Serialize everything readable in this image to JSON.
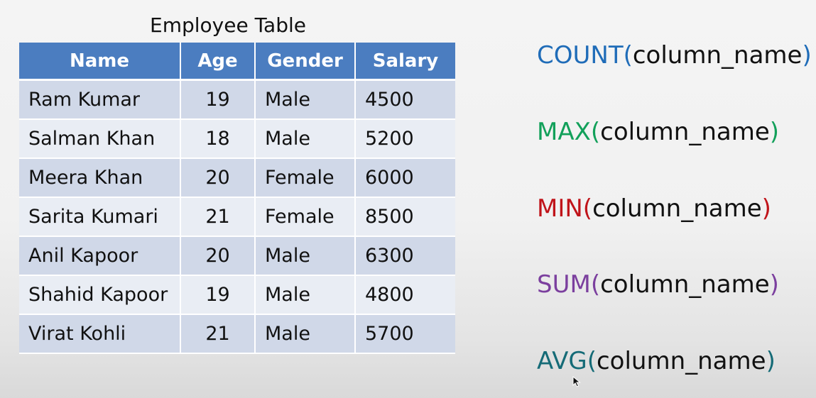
{
  "table": {
    "title": "Employee Table",
    "columns": [
      "Name",
      "Age",
      "Gender",
      "Salary"
    ],
    "rows": [
      {
        "name": "Ram Kumar",
        "age": "19",
        "gender": "Male",
        "salary": "4500"
      },
      {
        "name": "Salman Khan",
        "age": "18",
        "gender": "Male",
        "salary": "5200"
      },
      {
        "name": "Meera Khan",
        "age": "20",
        "gender": "Female",
        "salary": "6000"
      },
      {
        "name": "Sarita Kumari",
        "age": "21",
        "gender": "Female",
        "salary": "8500"
      },
      {
        "name": "Anil Kapoor",
        "age": "20",
        "gender": "Male",
        "salary": "6300"
      },
      {
        "name": "Shahid Kapoor",
        "age": "19",
        "gender": "Male",
        "salary": "4800"
      },
      {
        "name": "Virat Kohli",
        "age": "21",
        "gender": "Male",
        "salary": "5700"
      }
    ],
    "header_color": "#4b7dc0",
    "row_color_odd": "#d0d8e8",
    "row_color_even": "#e9edf4"
  },
  "functions": [
    {
      "name": "COUNT",
      "open": "(",
      "arg": "column_name",
      "close": ")",
      "color": "#1f6cb8"
    },
    {
      "name": "MAX",
      "open": "(",
      "arg": "column_name",
      "close": ")",
      "color": "#12a05a"
    },
    {
      "name": "MIN",
      "open": "(",
      "arg": "column_name",
      "close": ")",
      "color": "#c0141a"
    },
    {
      "name": "SUM",
      "open": "(",
      "arg": "column_name",
      "close": ")",
      "color": "#7b3f9e"
    },
    {
      "name": "AVG",
      "open": "(",
      "arg": "column_name",
      "close": ")",
      "color": "#156b77"
    }
  ],
  "cursor_icon": "mouse-pointer-icon"
}
